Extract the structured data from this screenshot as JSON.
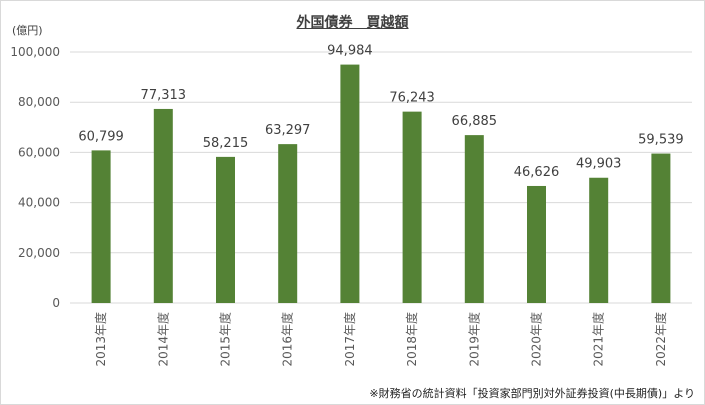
{
  "chart_data": {
    "type": "bar",
    "title": "外国債券　買越額",
    "unit_label": "(億円)",
    "categories": [
      "2013年度",
      "2014年度",
      "2015年度",
      "2016年度",
      "2017年度",
      "2018年度",
      "2019年度",
      "2020年度",
      "2021年度",
      "2022年度"
    ],
    "values": [
      60799,
      77313,
      58215,
      63297,
      94984,
      76243,
      66885,
      46626,
      49903,
      59539
    ],
    "data_labels": [
      "60,799",
      "77,313",
      "58,215",
      "63,297",
      "94,984",
      "76,243",
      "66,885",
      "46,626",
      "49,903",
      "59,539"
    ],
    "yticks": [
      "0",
      "20,000",
      "40,000",
      "60,000",
      "80,000",
      "100,000"
    ],
    "ylim": [
      0,
      100000
    ],
    "grid": true,
    "bar_color": "#548235",
    "grid_color": "#d9d9d9",
    "source_note": "※財務省の統計資料「投資家部門別対外証券投資(中長期債)」より"
  }
}
